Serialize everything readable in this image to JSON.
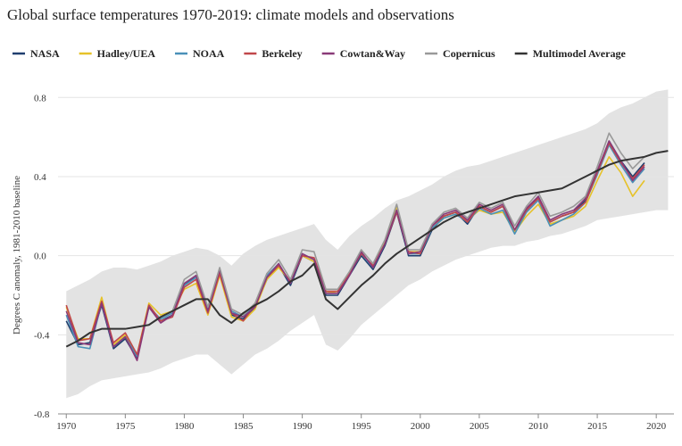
{
  "chart_data": {
    "type": "line",
    "title": "Global surface temperatures 1970-2019: climate models and observations",
    "y_label": "Degrees C anomaly, 1981-2010 baseline",
    "x": [
      1970,
      1971,
      1972,
      1973,
      1974,
      1975,
      1976,
      1977,
      1978,
      1979,
      1980,
      1981,
      1982,
      1983,
      1984,
      1985,
      1986,
      1987,
      1988,
      1989,
      1990,
      1991,
      1992,
      1993,
      1994,
      1995,
      1996,
      1997,
      1998,
      1999,
      2000,
      2001,
      2002,
      2003,
      2004,
      2005,
      2006,
      2007,
      2008,
      2009,
      2010,
      2011,
      2012,
      2013,
      2014,
      2015,
      2016,
      2017,
      2018,
      2019,
      2020,
      2021
    ],
    "band": {
      "color": "#e3e3e3",
      "upper": [
        -0.18,
        -0.15,
        -0.12,
        -0.08,
        -0.06,
        -0.06,
        -0.07,
        -0.05,
        -0.03,
        0.0,
        0.02,
        0.04,
        0.03,
        0.0,
        -0.05,
        0.01,
        0.05,
        0.08,
        0.1,
        0.12,
        0.14,
        0.16,
        0.08,
        0.03,
        0.1,
        0.15,
        0.19,
        0.24,
        0.28,
        0.3,
        0.33,
        0.36,
        0.4,
        0.43,
        0.45,
        0.46,
        0.48,
        0.5,
        0.52,
        0.54,
        0.56,
        0.58,
        0.6,
        0.62,
        0.64,
        0.67,
        0.72,
        0.75,
        0.77,
        0.8,
        0.83,
        0.84
      ],
      "lower": [
        -0.72,
        -0.7,
        -0.66,
        -0.63,
        -0.62,
        -0.61,
        -0.6,
        -0.59,
        -0.57,
        -0.54,
        -0.52,
        -0.5,
        -0.5,
        -0.55,
        -0.6,
        -0.55,
        -0.5,
        -0.47,
        -0.43,
        -0.38,
        -0.34,
        -0.3,
        -0.45,
        -0.48,
        -0.42,
        -0.35,
        -0.3,
        -0.25,
        -0.2,
        -0.15,
        -0.12,
        -0.08,
        -0.05,
        -0.02,
        0.0,
        0.02,
        0.04,
        0.05,
        0.05,
        0.07,
        0.08,
        0.1,
        0.11,
        0.13,
        0.15,
        0.18,
        0.19,
        0.2,
        0.21,
        0.22,
        0.23,
        0.23
      ]
    },
    "series": [
      {
        "name": "NASA",
        "color": "#1f3e6e",
        "values": [
          -0.33,
          -0.45,
          -0.44,
          -0.25,
          -0.47,
          -0.42,
          -0.52,
          -0.25,
          -0.33,
          -0.3,
          -0.15,
          -0.1,
          -0.28,
          -0.08,
          -0.3,
          -0.32,
          -0.26,
          -0.12,
          -0.05,
          -0.15,
          0.0,
          -0.03,
          -0.2,
          -0.2,
          -0.1,
          0.0,
          -0.07,
          0.05,
          0.22,
          0.0,
          0.0,
          0.13,
          0.2,
          0.22,
          0.16,
          0.25,
          0.22,
          0.25,
          0.12,
          0.23,
          0.3,
          0.17,
          0.2,
          0.22,
          0.28,
          0.42,
          0.58,
          0.48,
          0.4,
          0.47,
          null,
          null
        ]
      },
      {
        "name": "Hadley/UEA",
        "color": "#e6c229",
        "values": [
          -0.26,
          -0.42,
          -0.42,
          -0.21,
          -0.45,
          -0.4,
          -0.5,
          -0.24,
          -0.3,
          -0.28,
          -0.17,
          -0.14,
          -0.3,
          -0.1,
          -0.31,
          -0.33,
          -0.27,
          -0.12,
          -0.06,
          -0.13,
          0.0,
          -0.03,
          -0.19,
          -0.18,
          -0.09,
          0.02,
          -0.06,
          0.07,
          0.25,
          0.02,
          0.02,
          0.14,
          0.19,
          0.21,
          0.18,
          0.23,
          0.21,
          0.22,
          0.12,
          0.2,
          0.26,
          0.16,
          0.18,
          0.2,
          0.25,
          0.38,
          0.5,
          0.42,
          0.3,
          0.38,
          null,
          null
        ]
      },
      {
        "name": "NOAA",
        "color": "#4a90b8",
        "values": [
          -0.3,
          -0.46,
          -0.47,
          -0.24,
          -0.46,
          -0.41,
          -0.51,
          -0.26,
          -0.32,
          -0.29,
          -0.15,
          -0.11,
          -0.27,
          -0.08,
          -0.28,
          -0.31,
          -0.25,
          -0.1,
          -0.04,
          -0.14,
          0.01,
          -0.02,
          -0.19,
          -0.19,
          -0.09,
          0.01,
          -0.06,
          0.06,
          0.23,
          0.01,
          0.01,
          0.14,
          0.19,
          0.21,
          0.17,
          0.24,
          0.21,
          0.23,
          0.11,
          0.22,
          0.28,
          0.15,
          0.18,
          0.21,
          0.27,
          0.41,
          0.56,
          0.46,
          0.37,
          0.44,
          null,
          null
        ]
      },
      {
        "name": "Berkeley",
        "color": "#c0474a",
        "values": [
          -0.25,
          -0.43,
          -0.42,
          -0.23,
          -0.44,
          -0.39,
          -0.5,
          -0.25,
          -0.33,
          -0.31,
          -0.16,
          -0.12,
          -0.29,
          -0.09,
          -0.29,
          -0.33,
          -0.25,
          -0.11,
          -0.05,
          -0.13,
          0.0,
          -0.01,
          -0.18,
          -0.18,
          -0.09,
          0.01,
          -0.05,
          0.06,
          0.22,
          0.02,
          0.01,
          0.15,
          0.2,
          0.22,
          0.17,
          0.25,
          0.22,
          0.25,
          0.13,
          0.23,
          0.29,
          0.17,
          0.2,
          0.22,
          0.27,
          0.42,
          0.57,
          0.47,
          0.39,
          0.46,
          null,
          null
        ]
      },
      {
        "name": "Cowtan&Way",
        "color": "#8a3a78",
        "values": [
          -0.28,
          -0.44,
          -0.45,
          -0.24,
          -0.46,
          -0.41,
          -0.53,
          -0.26,
          -0.34,
          -0.3,
          -0.14,
          -0.1,
          -0.28,
          -0.07,
          -0.29,
          -0.31,
          -0.26,
          -0.11,
          -0.04,
          -0.14,
          0.01,
          -0.02,
          -0.19,
          -0.19,
          -0.1,
          0.02,
          -0.06,
          0.06,
          0.23,
          0.01,
          0.02,
          0.15,
          0.21,
          0.23,
          0.18,
          0.26,
          0.23,
          0.26,
          0.13,
          0.24,
          0.3,
          0.18,
          0.21,
          0.23,
          0.29,
          0.43,
          0.58,
          0.48,
          0.38,
          0.45,
          null,
          null
        ]
      },
      {
        "name": "Copernicus",
        "color": "#999999",
        "values": [
          null,
          null,
          null,
          null,
          null,
          null,
          null,
          null,
          null,
          -0.28,
          -0.12,
          -0.08,
          -0.26,
          -0.06,
          -0.27,
          -0.3,
          -0.24,
          -0.09,
          -0.02,
          -0.12,
          0.03,
          0.02,
          -0.17,
          -0.17,
          -0.08,
          0.03,
          -0.04,
          0.08,
          0.26,
          0.03,
          0.03,
          0.16,
          0.22,
          0.24,
          0.19,
          0.27,
          0.24,
          0.27,
          0.15,
          0.25,
          0.32,
          0.2,
          0.22,
          0.25,
          0.3,
          0.45,
          0.62,
          0.52,
          0.44,
          0.5,
          null,
          null
        ]
      },
      {
        "name": "Multimodel Average",
        "color": "#333333",
        "values": [
          -0.46,
          -0.43,
          -0.39,
          -0.37,
          -0.37,
          -0.37,
          -0.36,
          -0.35,
          -0.31,
          -0.28,
          -0.25,
          -0.22,
          -0.22,
          -0.3,
          -0.34,
          -0.29,
          -0.25,
          -0.22,
          -0.18,
          -0.13,
          -0.1,
          -0.04,
          -0.22,
          -0.27,
          -0.21,
          -0.15,
          -0.1,
          -0.04,
          0.01,
          0.05,
          0.09,
          0.13,
          0.17,
          0.2,
          0.22,
          0.24,
          0.26,
          0.28,
          0.3,
          0.31,
          0.32,
          0.33,
          0.34,
          0.37,
          0.4,
          0.43,
          0.46,
          0.48,
          0.49,
          0.5,
          0.52,
          0.53
        ]
      }
    ],
    "xlim": [
      1969.3,
      2021.5
    ],
    "ylim": [
      -0.8,
      0.86
    ],
    "xticks": [
      1970,
      1975,
      1980,
      1985,
      1990,
      1995,
      2000,
      2005,
      2010,
      2015,
      2020
    ],
    "yticks": [
      -0.8,
      -0.4,
      {
        "value": 0,
        "label": "0.0"
      },
      0.4,
      0.8
    ],
    "grid": true,
    "legend": "top"
  }
}
